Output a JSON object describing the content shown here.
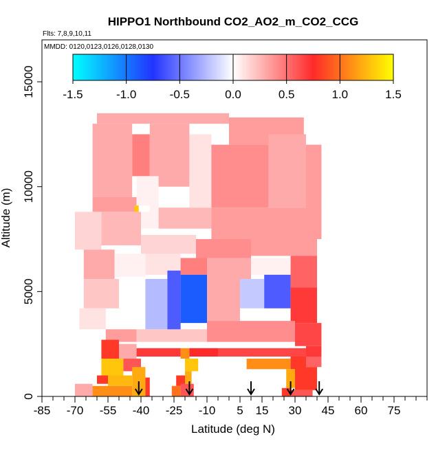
{
  "chart_data": {
    "type": "heatmap",
    "title": "HIPPO1 Northbound CO2_AO2_m_CO2_CCG",
    "flights_note": "Flts: 7,8,9,10,11",
    "dates_note": "MMDD: 0120,0123,0126,0128,0130",
    "xlabel": "Latitude (deg N)",
    "ylabel": "Altitude (m)",
    "xlim": [
      -85,
      90
    ],
    "ylim": [
      0,
      17000
    ],
    "x_ticks": [
      -85,
      -70,
      -55,
      -40,
      -25,
      -10,
      5,
      15,
      30,
      45,
      60,
      75
    ],
    "x_tick_labels": [
      "-85",
      "-70",
      "-55",
      "-40",
      "-25",
      "-10",
      "5",
      "15",
      "30",
      "45",
      "60",
      "75"
    ],
    "x_minor_step": 5,
    "y_ticks": [
      0,
      5000,
      10000,
      15000
    ],
    "y_tick_labels": [
      "0",
      "5000",
      "10000",
      "15000"
    ],
    "colorbar": {
      "min": -1.5,
      "max": 1.5,
      "ticks": [
        -1.5,
        -1.0,
        -0.5,
        0.0,
        0.5,
        1.0,
        1.5
      ],
      "tick_labels": [
        "-1.5",
        "-1.0",
        "-0.5",
        "0.0",
        "0.5",
        "1.0",
        "1.5"
      ],
      "stops": [
        {
          "value": -1.5,
          "color": "#00ffff"
        },
        {
          "value": -0.75,
          "color": "#2233ff"
        },
        {
          "value": 0.0,
          "color": "#ffffff"
        },
        {
          "value": 0.75,
          "color": "#ff2a2a"
        },
        {
          "value": 1.5,
          "color": "#ffff00"
        }
      ]
    },
    "grid": false,
    "profile_markers": {
      "shape": "down-arrow",
      "latitudes": [
        -41,
        -18,
        10,
        28,
        41
      ]
    },
    "cells": [
      {
        "x": [
          -60,
          0
        ],
        "y": [
          13000,
          13500
        ],
        "value": 0.3
      },
      {
        "x": [
          0,
          34
        ],
        "y": [
          12000,
          13300
        ],
        "value": 0.35
      },
      {
        "x": [
          -62,
          -44
        ],
        "y": [
          9500,
          13000
        ],
        "value": 0.3
      },
      {
        "x": [
          -44,
          -36
        ],
        "y": [
          10500,
          12500
        ],
        "value": 0.45
      },
      {
        "x": [
          -36,
          -18
        ],
        "y": [
          10000,
          13000
        ],
        "value": 0.3
      },
      {
        "x": [
          -18,
          -8
        ],
        "y": [
          9000,
          12500
        ],
        "value": 0.1
      },
      {
        "x": [
          -8,
          18
        ],
        "y": [
          9000,
          12000
        ],
        "value": 0.4
      },
      {
        "x": [
          18,
          35
        ],
        "y": [
          9000,
          12500
        ],
        "value": 0.3
      },
      {
        "x": [
          35,
          42
        ],
        "y": [
          8500,
          12000
        ],
        "value": 0.35
      },
      {
        "x": [
          -62,
          -42
        ],
        "y": [
          8800,
          9500
        ],
        "value": 0.35
      },
      {
        "x": [
          -42,
          -32
        ],
        "y": [
          8000,
          10500
        ],
        "value": 0.05
      },
      {
        "x": [
          -32,
          -8
        ],
        "y": [
          8000,
          9000
        ],
        "value": 0.25
      },
      {
        "x": [
          -8,
          42
        ],
        "y": [
          7500,
          9000
        ],
        "value": 0.35
      },
      {
        "x": [
          -70,
          -58
        ],
        "y": [
          7000,
          8800
        ],
        "value": 0.15
      },
      {
        "x": [
          -58,
          -40
        ],
        "y": [
          7200,
          8800
        ],
        "value": 0.25
      },
      {
        "x": [
          -40,
          -15
        ],
        "y": [
          6800,
          7700
        ],
        "value": 0.15
      },
      {
        "x": [
          -15,
          10
        ],
        "y": [
          6600,
          7500
        ],
        "value": 0.4
      },
      {
        "x": [
          10,
          40
        ],
        "y": [
          6700,
          7500
        ],
        "value": 0.35
      },
      {
        "x": [
          -66,
          -52
        ],
        "y": [
          5600,
          7000
        ],
        "value": 0.3
      },
      {
        "x": [
          -52,
          -38
        ],
        "y": [
          5700,
          6800
        ],
        "value": 0.05
      },
      {
        "x": [
          -38,
          -22
        ],
        "y": [
          5800,
          6800
        ],
        "value": 0.1
      },
      {
        "x": [
          -22,
          -10
        ],
        "y": [
          5800,
          6600
        ],
        "value": 0.45
      },
      {
        "x": [
          -10,
          10
        ],
        "y": [
          5600,
          6600
        ],
        "value": 0.3
      },
      {
        "x": [
          10,
          28
        ],
        "y": [
          5800,
          6600
        ],
        "value": 0.05
      },
      {
        "x": [
          28,
          40
        ],
        "y": [
          5200,
          6700
        ],
        "value": 0.55
      },
      {
        "x": [
          -66,
          -50
        ],
        "y": [
          4200,
          5600
        ],
        "value": 0.2
      },
      {
        "x": [
          -50,
          -38
        ],
        "y": [
          3200,
          5600
        ],
        "value": 0.0
      },
      {
        "x": [
          -38,
          -28
        ],
        "y": [
          3200,
          5600
        ],
        "value": -0.25
      },
      {
        "x": [
          -28,
          -22
        ],
        "y": [
          3000,
          6000
        ],
        "value": -0.6
      },
      {
        "x": [
          -22,
          -10
        ],
        "y": [
          3500,
          5800
        ],
        "value": -0.9
      },
      {
        "x": [
          -10,
          5
        ],
        "y": [
          3600,
          5600
        ],
        "value": 0.3
      },
      {
        "x": [
          5,
          16
        ],
        "y": [
          4200,
          5600
        ],
        "value": -0.2
      },
      {
        "x": [
          16,
          28
        ],
        "y": [
          4200,
          5800
        ],
        "value": -0.6
      },
      {
        "x": [
          28,
          40
        ],
        "y": [
          3500,
          5200
        ],
        "value": 0.7
      },
      {
        "x": [
          -68,
          -56
        ],
        "y": [
          3200,
          4200
        ],
        "value": 0.1
      },
      {
        "x": [
          -56,
          -42
        ],
        "y": [
          2600,
          3200
        ],
        "value": 0.35
      },
      {
        "x": [
          -42,
          -10
        ],
        "y": [
          2600,
          3200
        ],
        "value": 0.2
      },
      {
        "x": [
          -10,
          30
        ],
        "y": [
          2600,
          3600
        ],
        "value": 0.4
      },
      {
        "x": [
          30,
          42
        ],
        "y": [
          2400,
          3500
        ],
        "value": 0.65
      },
      {
        "x": [
          -58,
          -50
        ],
        "y": [
          1800,
          2700
        ],
        "value": 0.8
      },
      {
        "x": [
          -50,
          -42
        ],
        "y": [
          1800,
          2500
        ],
        "value": 0.3
      },
      {
        "x": [
          -42,
          -22
        ],
        "y": [
          1900,
          2300
        ],
        "value": 0.7
      },
      {
        "x": [
          -22,
          -18
        ],
        "y": [
          1800,
          2300
        ],
        "value": 1.1
      },
      {
        "x": [
          -18,
          -5
        ],
        "y": [
          1900,
          2300
        ],
        "value": 0.75
      },
      {
        "x": [
          -5,
          35
        ],
        "y": [
          1900,
          2300
        ],
        "value": 0.65
      },
      {
        "x": [
          35,
          42
        ],
        "y": [
          1900,
          2400
        ],
        "value": 0.7
      },
      {
        "x": [
          -58,
          -48
        ],
        "y": [
          1000,
          1800
        ],
        "value": 1.3
      },
      {
        "x": [
          -48,
          -40
        ],
        "y": [
          1200,
          1800
        ],
        "value": 0.6
      },
      {
        "x": [
          -20,
          -14
        ],
        "y": [
          1200,
          1800
        ],
        "value": 1.3
      },
      {
        "x": [
          8,
          28
        ],
        "y": [
          1300,
          1800
        ],
        "value": 1.1
      },
      {
        "x": [
          28,
          35
        ],
        "y": [
          1300,
          1900
        ],
        "value": 0.8
      },
      {
        "x": [
          35,
          42
        ],
        "y": [
          1400,
          1900
        ],
        "value": 0.55
      },
      {
        "x": [
          -60,
          -55
        ],
        "y": [
          600,
          1000
        ],
        "value": 0.8
      },
      {
        "x": [
          -55,
          -44
        ],
        "y": [
          500,
          1000
        ],
        "value": 1.25
      },
      {
        "x": [
          -44,
          -38
        ],
        "y": [
          0,
          1400
        ],
        "value": 1.2
      },
      {
        "x": [
          -38,
          -36
        ],
        "y": [
          0,
          900
        ],
        "value": 0.8
      },
      {
        "x": [
          -24,
          -20
        ],
        "y": [
          500,
          1000
        ],
        "value": 0.8
      },
      {
        "x": [
          -20,
          -17
        ],
        "y": [
          600,
          1200
        ],
        "value": 1.2
      },
      {
        "x": [
          26,
          30
        ],
        "y": [
          400,
          1300
        ],
        "value": 1.2
      },
      {
        "x": [
          30,
          40
        ],
        "y": [
          300,
          1400
        ],
        "value": 0.8
      },
      {
        "x": [
          -70,
          -62
        ],
        "y": [
          0,
          600
        ],
        "value": 0.3
      },
      {
        "x": [
          -62,
          -44
        ],
        "y": [
          0,
          500
        ],
        "value": 1.1
      },
      {
        "x": [
          -26,
          -22
        ],
        "y": [
          0,
          500
        ],
        "value": 1.0
      },
      {
        "x": [
          -22,
          -16
        ],
        "y": [
          0,
          600
        ],
        "value": 0.6
      },
      {
        "x": [
          24,
          28
        ],
        "y": [
          0,
          400
        ],
        "value": 0.8
      },
      {
        "x": [
          28,
          38
        ],
        "y": [
          0,
          300
        ],
        "value": 0.6
      },
      {
        "x": [
          -43,
          -41
        ],
        "y": [
          8800,
          9100
        ],
        "value": 1.3
      },
      {
        "x": [
          -41,
          -36
        ],
        "y": [
          8800,
          9100
        ],
        "value": 0.0
      }
    ]
  }
}
